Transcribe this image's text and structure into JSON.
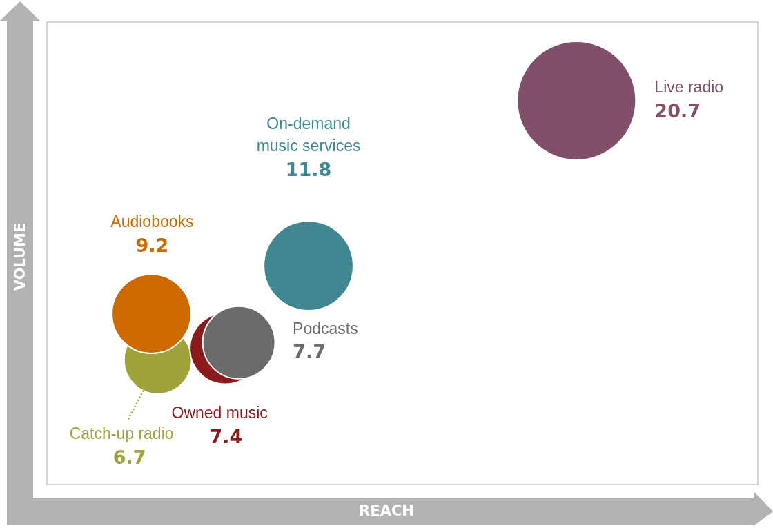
{
  "chart_data": {
    "type": "other",
    "xlabel": "REACH",
    "ylabel": "VOLUME",
    "data_labels": true,
    "categories": [
      "Live radio",
      "On-demand music services",
      "Catch-up radio",
      "Audiobooks",
      "Owned music",
      "Podcasts"
    ],
    "values": [
      20.7,
      11.8,
      6.7,
      9.2,
      7.4,
      7.7
    ],
    "colors": [
      "#824f6a",
      "#418791",
      "#a0a33b",
      "#cc6a00",
      "#8b1a1a",
      "#6b6b69"
    ]
  }
}
